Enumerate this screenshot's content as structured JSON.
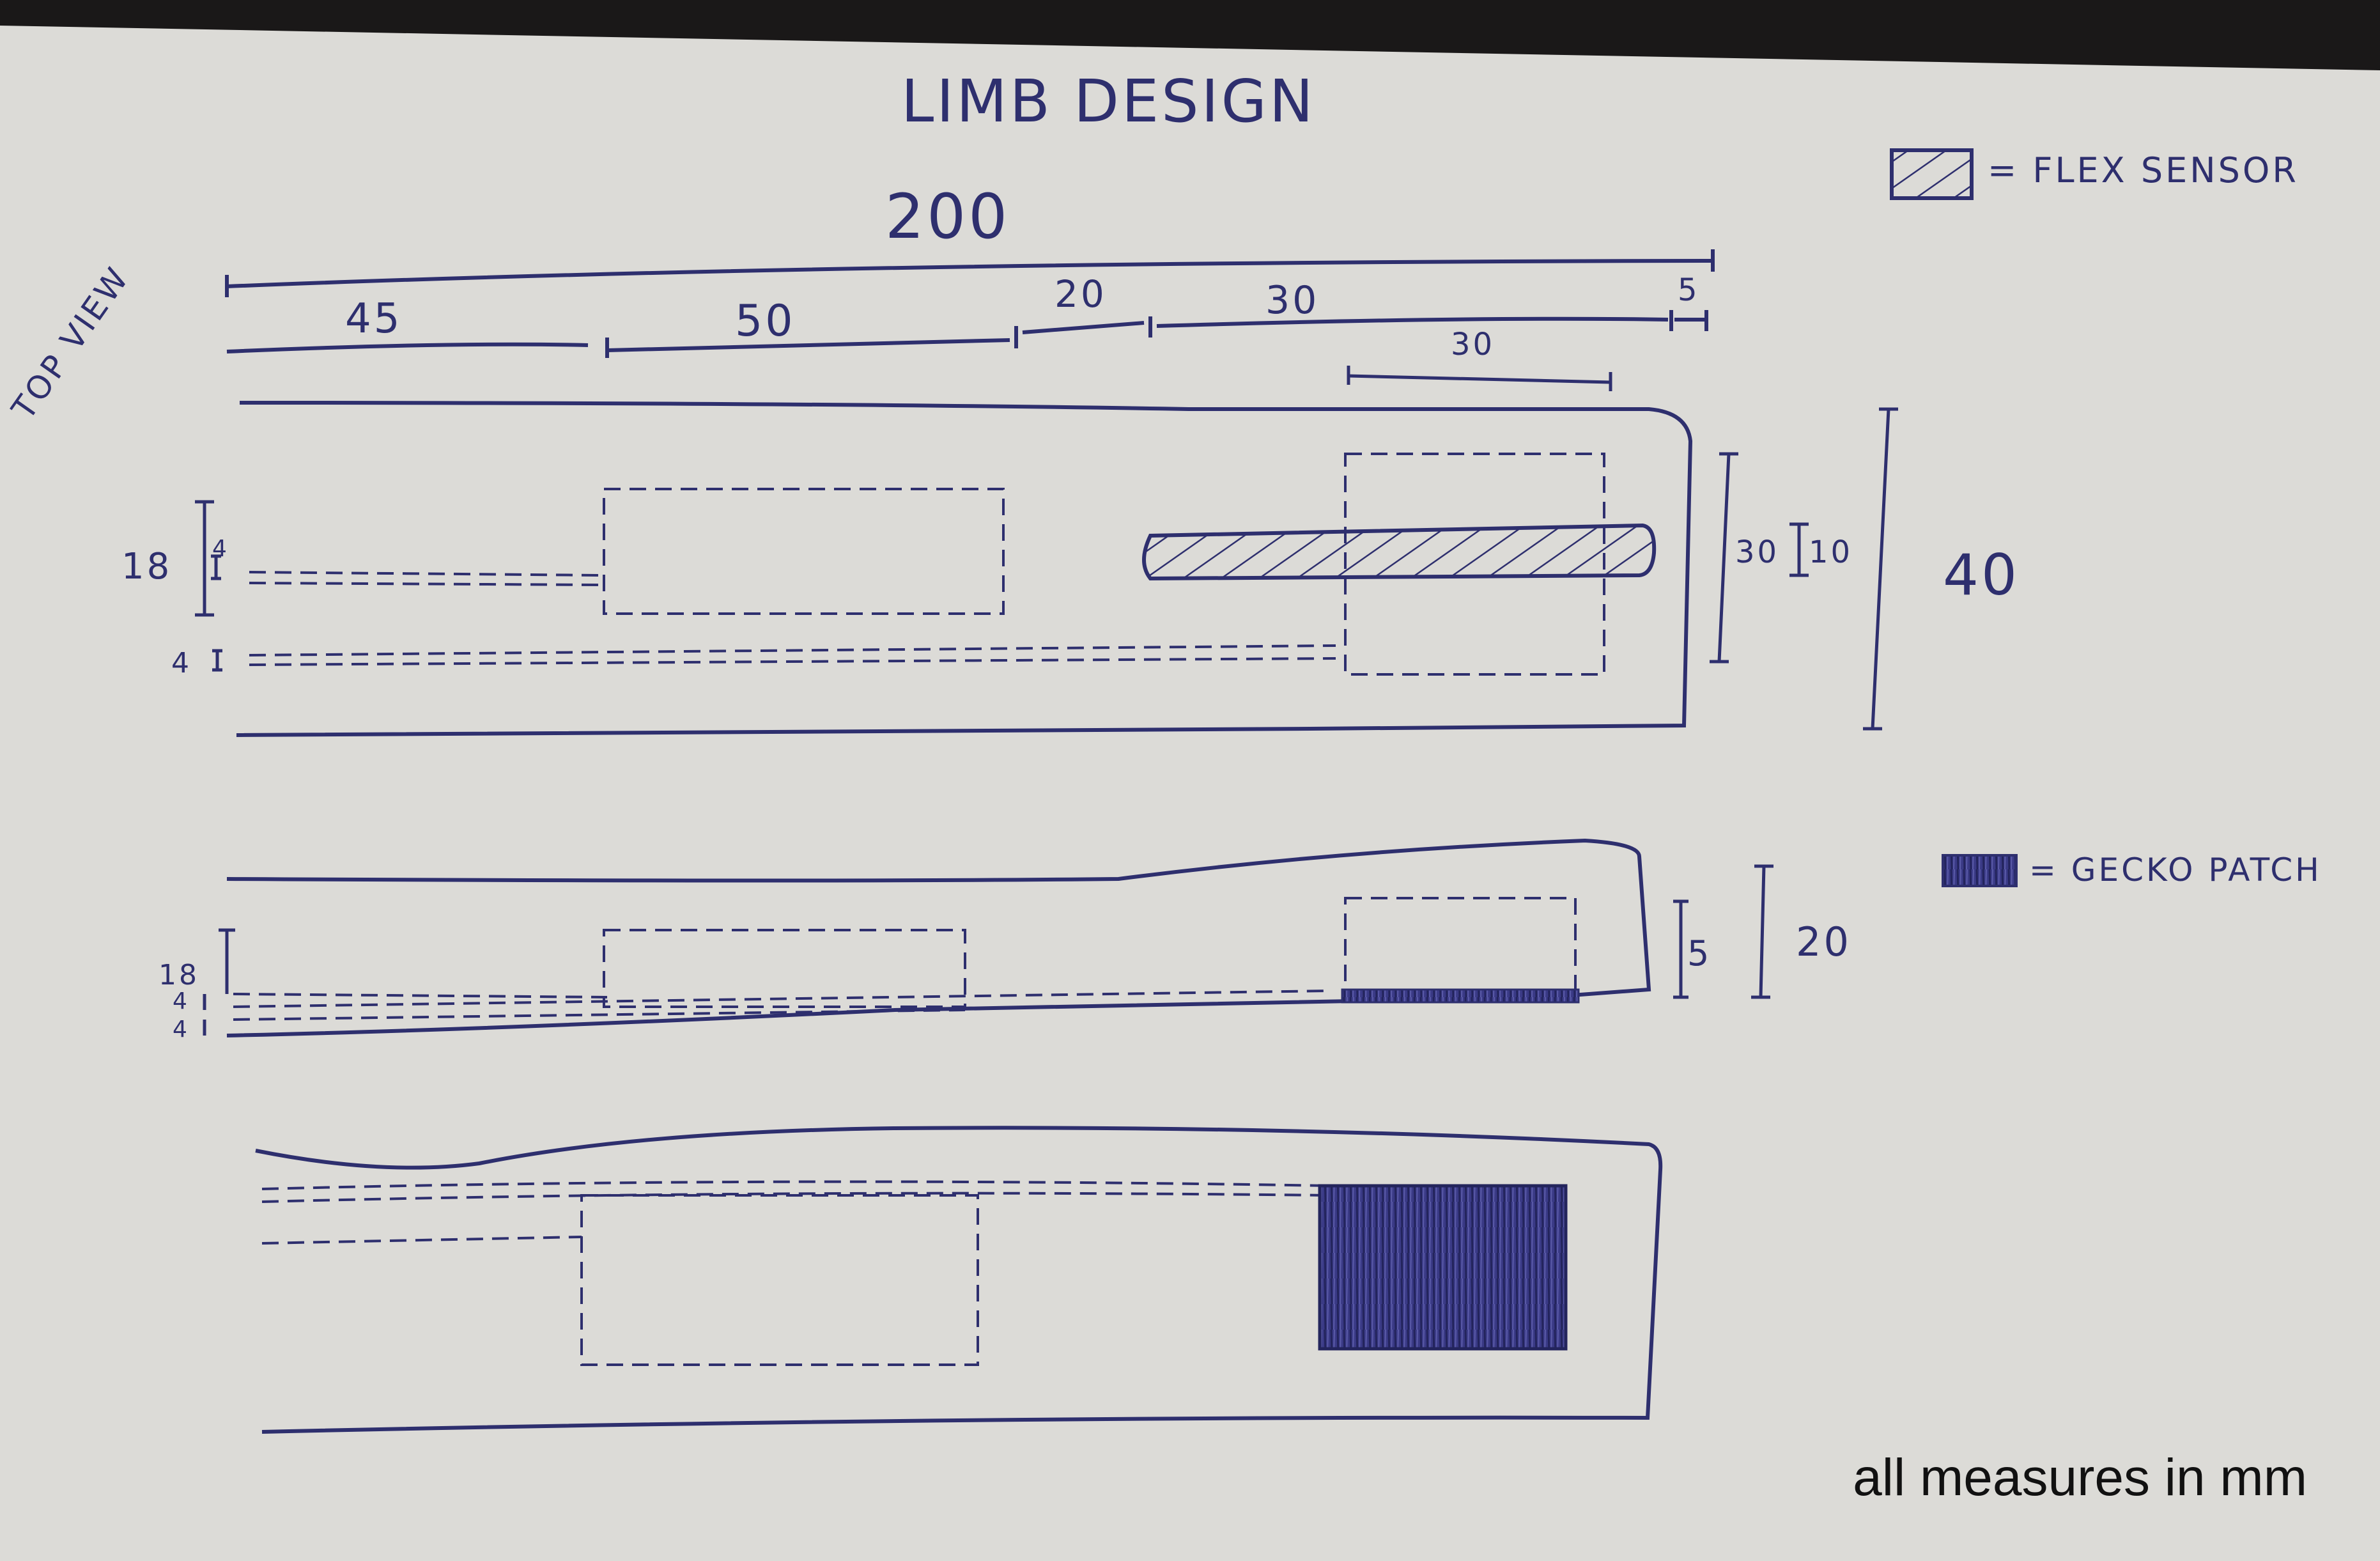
{
  "drawing": {
    "title": "LIMB DESIGN",
    "view_label": "TOP VIEW",
    "caption": "all measures in mm",
    "ink_color": "#2e2f6e",
    "paper_color": "#dcdbd7"
  },
  "legend": {
    "flex_sensor": "= FLEX SENSOR",
    "gecko_patch": "= GECKO PATCH"
  },
  "dimensions": {
    "overall_length": "200",
    "segments": [
      "45",
      "50",
      "20",
      "30",
      "5"
    ],
    "pad_width": "30",
    "sensor_offset": "30",
    "sensor_width": "10",
    "total_width": "40",
    "channel_height": "18",
    "channel_gap": "4",
    "side_patch_height": "5",
    "side_total_height": "20"
  }
}
